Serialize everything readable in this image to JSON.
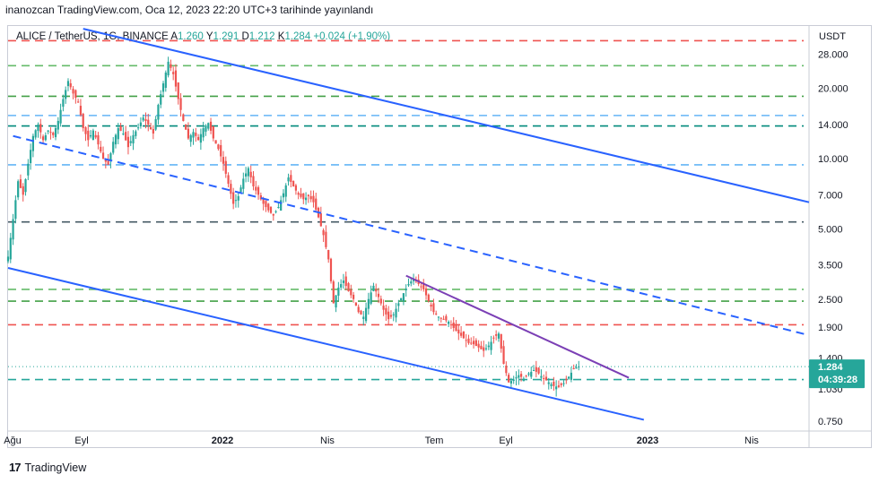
{
  "header": {
    "publish_line": "inanozcan TradingView.com, Oca 12, 2023 22:20 UTC+3 tarihinde yayınlandı"
  },
  "legend": {
    "symbol": "ALICE / TetherUS, 1G, BINANCE",
    "open_label": "A",
    "open": "1.260",
    "high_label": "Y",
    "high": "1.291",
    "low_label": "D",
    "low": "1.212",
    "close_label": "K",
    "close": "1.284",
    "change": "+0.024 (+1.90%)"
  },
  "footer": {
    "brand": "TradingView",
    "logo": "17"
  },
  "colors": {
    "up": "#26a69a",
    "down": "#ef5350",
    "trend_blue": "#2962ff",
    "purple": "#7b3fb5"
  },
  "chart_data": {
    "type": "candlestick",
    "y_scale": "log",
    "ylim": [
      0.68,
      37
    ],
    "currency_label": "USDT",
    "y_ticks": [
      "28.000",
      "20.000",
      "14.000",
      "10.000",
      "7.000",
      "5.000",
      "3.500",
      "2.500",
      "1.900",
      "1.400",
      "1.030",
      "0.750"
    ],
    "x_ticks": [
      {
        "label": "Ağu",
        "bold": false
      },
      {
        "label": "Eyl",
        "bold": false
      },
      {
        "label": "2022",
        "bold": true
      },
      {
        "label": "Nis",
        "bold": false
      },
      {
        "label": "Tem",
        "bold": false
      },
      {
        "label": "Eyl",
        "bold": false
      },
      {
        "label": "2023",
        "bold": true
      },
      {
        "label": "Nis",
        "bold": false
      }
    ],
    "last_price": {
      "value": "1.284",
      "countdown": "04:39:28"
    },
    "horizontal_levels": [
      {
        "price": 32.0,
        "color": "#ef5350"
      },
      {
        "price": 25.0,
        "color": "#66bb6a"
      },
      {
        "price": 18.5,
        "color": "#43a047"
      },
      {
        "price": 15.3,
        "color": "#64b5f6"
      },
      {
        "price": 13.8,
        "color": "#00897b"
      },
      {
        "price": 9.4,
        "color": "#64b5f6"
      },
      {
        "price": 5.35,
        "color": "#455a64"
      },
      {
        "price": 2.75,
        "color": "#66bb6a"
      },
      {
        "price": 2.45,
        "color": "#43a047"
      },
      {
        "price": 1.94,
        "color": "#ef5350"
      },
      {
        "price": 1.13,
        "color": "#26a69a"
      }
    ],
    "price_path": [
      [
        0,
        3.8
      ],
      [
        2,
        5.5
      ],
      [
        4,
        8.0
      ],
      [
        6,
        7.0
      ],
      [
        8,
        9.5
      ],
      [
        10,
        12.5
      ],
      [
        12,
        14.0
      ],
      [
        14,
        12.0
      ],
      [
        16,
        13.2
      ],
      [
        18,
        12.6
      ],
      [
        20,
        14.5
      ],
      [
        22,
        18.0
      ],
      [
        24,
        21.5
      ],
      [
        26,
        19.0
      ],
      [
        28,
        17.5
      ],
      [
        30,
        13.5
      ],
      [
        32,
        12.0
      ],
      [
        34,
        13.2
      ],
      [
        36,
        11.5
      ],
      [
        38,
        10.0
      ],
      [
        40,
        9.4
      ],
      [
        42,
        11.8
      ],
      [
        44,
        13.5
      ],
      [
        46,
        12.8
      ],
      [
        48,
        11.2
      ],
      [
        50,
        12.6
      ],
      [
        52,
        13.6
      ],
      [
        54,
        15.0
      ],
      [
        56,
        14.0
      ],
      [
        58,
        12.8
      ],
      [
        60,
        17.0
      ],
      [
        62,
        21.0
      ],
      [
        64,
        26.0
      ],
      [
        66,
        23.0
      ],
      [
        68,
        18.0
      ],
      [
        70,
        14.5
      ],
      [
        72,
        12.2
      ],
      [
        74,
        13.0
      ],
      [
        76,
        12.0
      ],
      [
        78,
        13.5
      ],
      [
        80,
        14.2
      ],
      [
        82,
        12.2
      ],
      [
        84,
        11.0
      ],
      [
        86,
        9.5
      ],
      [
        88,
        7.8
      ],
      [
        90,
        6.4
      ],
      [
        92,
        6.9
      ],
      [
        94,
        8.2
      ],
      [
        96,
        9.1
      ],
      [
        98,
        7.6
      ],
      [
        100,
        7.0
      ],
      [
        102,
        6.4
      ],
      [
        104,
        6.0
      ],
      [
        106,
        5.7
      ],
      [
        108,
        6.2
      ],
      [
        110,
        7.1
      ],
      [
        112,
        8.3
      ],
      [
        114,
        7.6
      ],
      [
        116,
        7.0
      ],
      [
        118,
        6.7
      ],
      [
        120,
        6.9
      ],
      [
        122,
        6.5
      ],
      [
        124,
        5.6
      ],
      [
        126,
        4.7
      ],
      [
        128,
        3.7
      ],
      [
        130,
        2.4
      ],
      [
        132,
        2.8
      ],
      [
        134,
        3.0
      ],
      [
        136,
        2.7
      ],
      [
        138,
        2.5
      ],
      [
        140,
        2.2
      ],
      [
        142,
        2.1
      ],
      [
        144,
        2.5
      ],
      [
        146,
        2.85
      ],
      [
        148,
        2.55
      ],
      [
        150,
        2.25
      ],
      [
        152,
        2.05
      ],
      [
        154,
        2.15
      ],
      [
        156,
        2.4
      ],
      [
        158,
        2.65
      ],
      [
        160,
        2.9
      ],
      [
        162,
        3.05
      ],
      [
        164,
        2.9
      ],
      [
        166,
        2.75
      ],
      [
        168,
        2.45
      ],
      [
        170,
        2.2
      ],
      [
        172,
        2.1
      ],
      [
        174,
        2.05
      ],
      [
        176,
        2.0
      ],
      [
        178,
        1.88
      ],
      [
        180,
        1.78
      ],
      [
        182,
        1.7
      ],
      [
        184,
        1.62
      ],
      [
        186,
        1.6
      ],
      [
        188,
        1.55
      ],
      [
        190,
        1.5
      ],
      [
        192,
        1.58
      ],
      [
        194,
        1.7
      ],
      [
        196,
        1.78
      ],
      [
        198,
        1.32
      ],
      [
        200,
        1.1
      ],
      [
        202,
        1.13
      ],
      [
        204,
        1.18
      ],
      [
        206,
        1.14
      ],
      [
        208,
        1.2
      ],
      [
        210,
        1.24
      ],
      [
        212,
        1.2
      ],
      [
        214,
        1.14
      ],
      [
        216,
        1.1
      ],
      [
        218,
        1.06
      ],
      [
        220,
        1.05
      ],
      [
        222,
        1.09
      ],
      [
        224,
        1.16
      ],
      [
        226,
        1.26
      ],
      [
        228,
        1.284
      ]
    ]
  }
}
